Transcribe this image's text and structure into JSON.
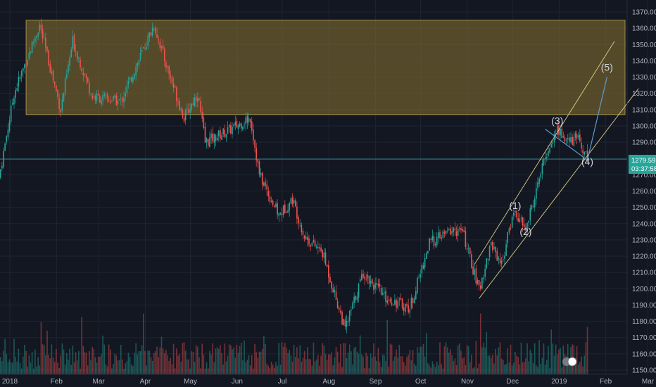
{
  "colors": {
    "background": "#131722",
    "grid": "#1f2433",
    "up": "#26a69a",
    "down": "#ef5350",
    "zone": "#7d6b2f",
    "channel": "#e8d98c",
    "projection": "#5b9bd5",
    "price_label": "#26a69a"
  },
  "chart_data": {
    "type": "candlestick",
    "symbol_timeframe": "daily",
    "ylim": [
      1147,
      1375
    ],
    "y_ticks": [
      "1150.00",
      "1160.00",
      "1170.00",
      "1180.00",
      "1190.00",
      "1200.00",
      "1210.00",
      "1220.00",
      "1230.00",
      "1240.00",
      "1250.00",
      "1260.00",
      "1270.00",
      "1280.00",
      "1290.00",
      "1300.00",
      "1310.00",
      "1320.00",
      "1330.00",
      "1340.00",
      "1350.00",
      "1360.00",
      "1370.00"
    ],
    "x_ticks": [
      "2018",
      "Feb",
      "Mar",
      "Apr",
      "May",
      "Jun",
      "Jul",
      "Aug",
      "Sep",
      "Oct",
      "Nov",
      "Dec",
      "2019",
      "Feb",
      "Mar"
    ],
    "price_path_keypoints": [
      {
        "date": "2017-12-29",
        "close": 1268
      },
      {
        "date": "2018-01-08",
        "close": 1320
      },
      {
        "date": "2018-01-25",
        "close": 1362
      },
      {
        "date": "2018-02-08",
        "close": 1310
      },
      {
        "date": "2018-02-16",
        "close": 1352
      },
      {
        "date": "2018-03-01",
        "close": 1318
      },
      {
        "date": "2018-03-20",
        "close": 1315
      },
      {
        "date": "2018-04-11",
        "close": 1362
      },
      {
        "date": "2018-04-20",
        "close": 1335
      },
      {
        "date": "2018-05-01",
        "close": 1305
      },
      {
        "date": "2018-05-10",
        "close": 1320
      },
      {
        "date": "2018-05-15",
        "close": 1290
      },
      {
        "date": "2018-06-01",
        "close": 1298
      },
      {
        "date": "2018-06-14",
        "close": 1305
      },
      {
        "date": "2018-06-20",
        "close": 1270
      },
      {
        "date": "2018-07-03",
        "close": 1245
      },
      {
        "date": "2018-07-12",
        "close": 1255
      },
      {
        "date": "2018-07-20",
        "close": 1232
      },
      {
        "date": "2018-08-01",
        "close": 1222
      },
      {
        "date": "2018-08-16",
        "close": 1175
      },
      {
        "date": "2018-08-28",
        "close": 1210
      },
      {
        "date": "2018-09-11",
        "close": 1195
      },
      {
        "date": "2018-09-28",
        "close": 1188
      },
      {
        "date": "2018-10-11",
        "close": 1228
      },
      {
        "date": "2018-10-26",
        "close": 1236
      },
      {
        "date": "2018-11-02",
        "close": 1235
      },
      {
        "date": "2018-11-13",
        "close": 1199
      },
      {
        "date": "2018-11-21",
        "close": 1228
      },
      {
        "date": "2018-11-28",
        "close": 1215
      },
      {
        "date": "2018-12-06",
        "close": 1248
      },
      {
        "date": "2018-12-14",
        "close": 1236
      },
      {
        "date": "2018-12-27",
        "close": 1281
      },
      {
        "date": "2019-01-04",
        "close": 1298
      },
      {
        "date": "2019-01-11",
        "close": 1290
      },
      {
        "date": "2019-01-18",
        "close": 1293
      },
      {
        "date": "2019-01-24",
        "close": 1279.59
      }
    ],
    "last_price": "1279.59",
    "countdown": "03:37:58",
    "resistance_zone": {
      "from_date": "2018-01-16",
      "to_date": "2019-03-31",
      "low": 1307,
      "high": 1365
    },
    "wave_labels": [
      {
        "text": "(1)",
        "date": "2018-12-07",
        "price": 1249
      },
      {
        "text": "(2)",
        "date": "2018-12-14",
        "price": 1233
      },
      {
        "text": "(3)",
        "date": "2019-01-04",
        "price": 1301
      },
      {
        "text": "(4)",
        "date": "2019-01-24",
        "price": 1276
      },
      {
        "text": "(5)",
        "date": "2019-02-06",
        "price": 1334
      }
    ],
    "channel_upper": [
      {
        "date": "2018-11-10",
        "price": 1215
      },
      {
        "date": "2019-02-11",
        "price": 1352
      }
    ],
    "channel_lower": [
      {
        "date": "2018-11-13",
        "price": 1194
      },
      {
        "date": "2019-02-27",
        "price": 1323
      }
    ],
    "projection_path": [
      {
        "date": "2018-12-27",
        "price": 1298
      },
      {
        "date": "2019-01-24",
        "price": 1279
      },
      {
        "date": "2019-02-06",
        "price": 1330
      }
    ],
    "volume": {
      "relative_max": 1.0
    }
  },
  "overlay": {
    "event_badge_count": "2"
  }
}
